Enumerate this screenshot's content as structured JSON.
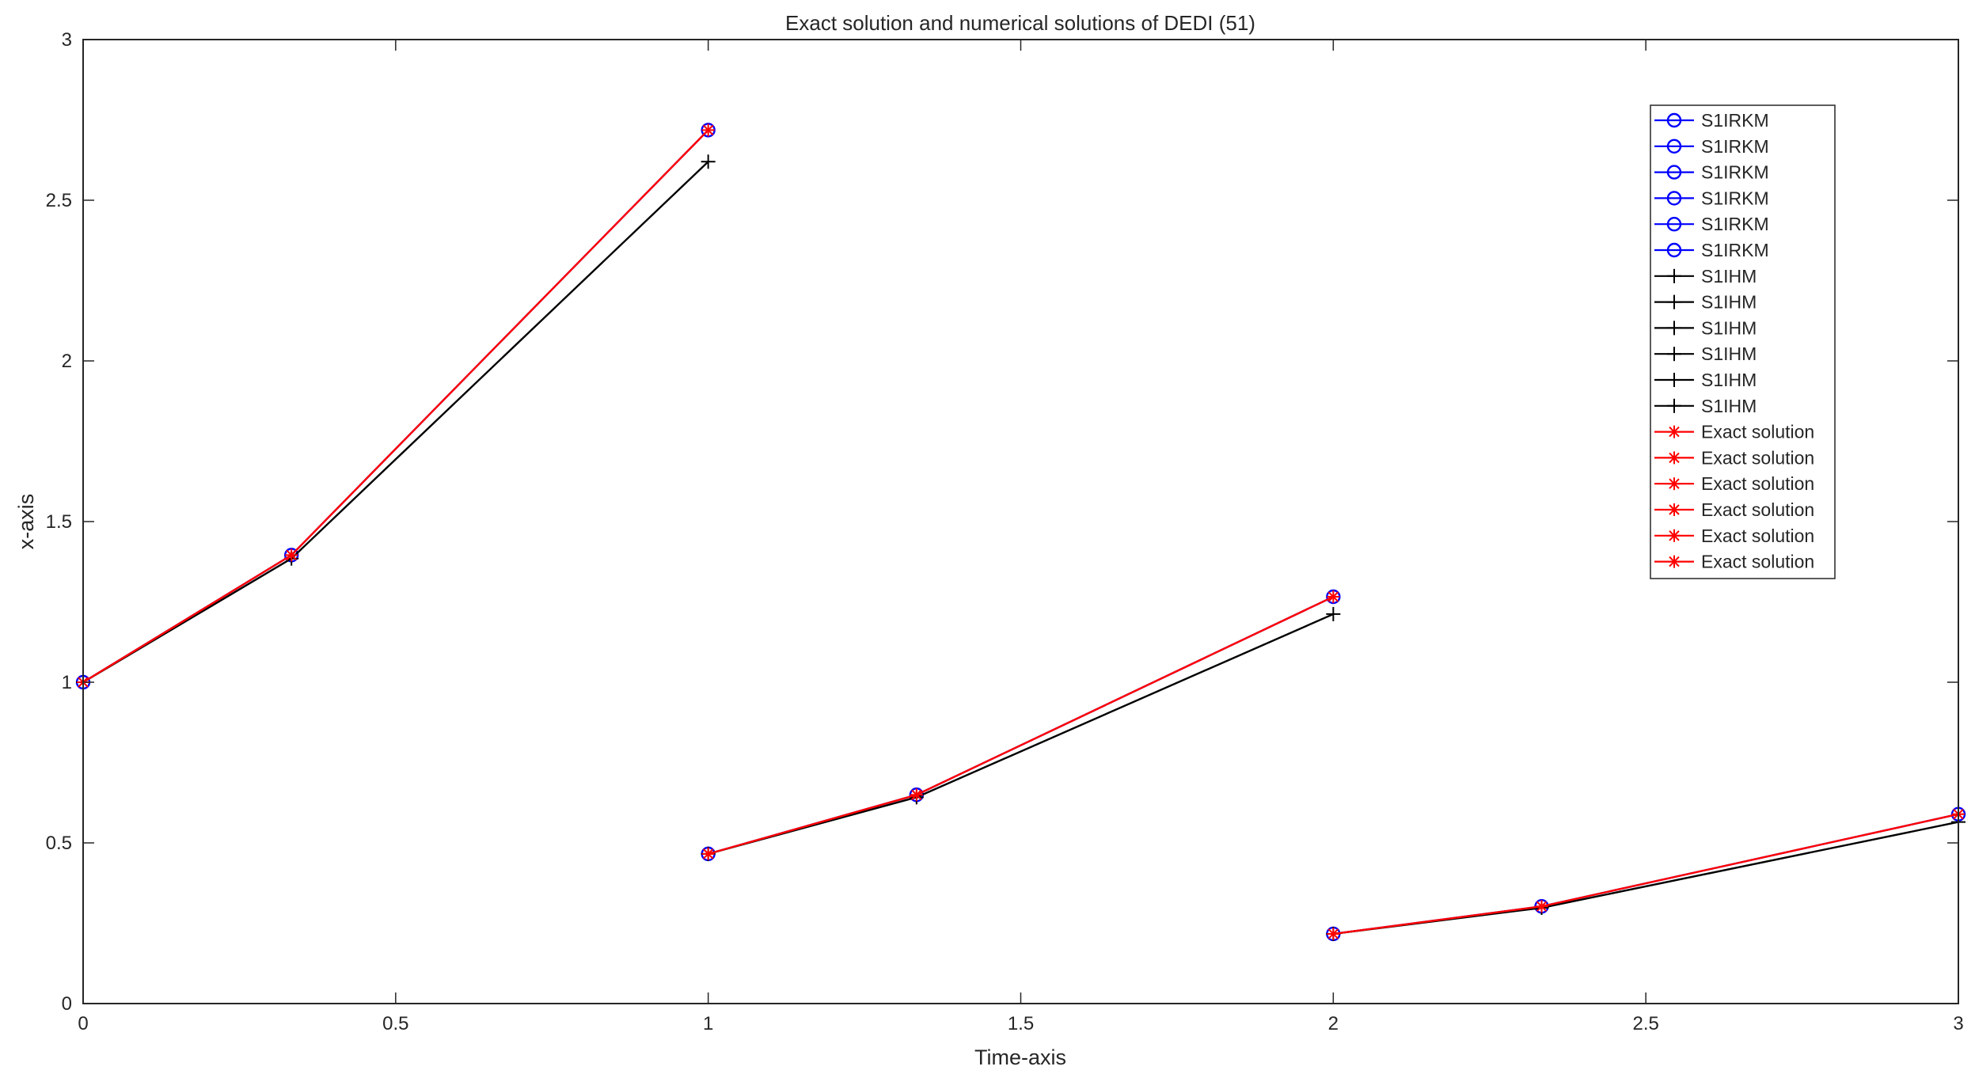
{
  "chart_data": {
    "type": "line",
    "title": "Exact solution and numerical solutions of DEDI (51)",
    "xlabel": "Time-axis",
    "ylabel": "x-axis",
    "xlim": [
      0,
      3
    ],
    "ylim": [
      0,
      3
    ],
    "xticks": [
      "0",
      "0.5",
      "1",
      "1.5",
      "2",
      "2.5",
      "3"
    ],
    "yticks": [
      "0",
      "0.5",
      "1",
      "1.5",
      "2",
      "2.5",
      "3"
    ],
    "grid": false,
    "legend_position": "top-right",
    "series": [
      {
        "name": "S1IRKM",
        "color": "#0000ff",
        "marker": "circle",
        "x": [
          0,
          0.3333,
          1
        ],
        "y": [
          1.0,
          1.3956,
          2.7183
        ]
      },
      {
        "name": "S1IRKM",
        "color": "#0000ff",
        "marker": "circle",
        "x": [
          1,
          1.3333,
          2
        ],
        "y": [
          0.4658,
          0.6496,
          1.266
        ]
      },
      {
        "name": "S1IRKM",
        "color": "#0000ff",
        "marker": "circle",
        "x": [
          2,
          2.3333,
          3
        ],
        "y": [
          0.2168,
          0.3024,
          0.5894
        ]
      },
      {
        "name": "S1IRKM",
        "color": "#0000ff",
        "marker": "circle",
        "x": [],
        "y": []
      },
      {
        "name": "S1IRKM",
        "color": "#0000ff",
        "marker": "circle",
        "x": [],
        "y": []
      },
      {
        "name": "S1IRKM",
        "color": "#0000ff",
        "marker": "circle",
        "x": [],
        "y": []
      },
      {
        "name": "S1IHM",
        "color": "#000000",
        "marker": "plus",
        "x": [
          0,
          0.3333,
          1
        ],
        "y": [
          1.0,
          1.385,
          2.62
        ]
      },
      {
        "name": "S1IHM",
        "color": "#000000",
        "marker": "plus",
        "x": [
          1,
          1.3333,
          2
        ],
        "y": [
          0.4658,
          0.642,
          1.212
        ]
      },
      {
        "name": "S1IHM",
        "color": "#000000",
        "marker": "plus",
        "x": [
          2,
          2.3333,
          3
        ],
        "y": [
          0.2168,
          0.298,
          0.565
        ]
      },
      {
        "name": "S1IHM",
        "color": "#000000",
        "marker": "plus",
        "x": [],
        "y": []
      },
      {
        "name": "S1IHM",
        "color": "#000000",
        "marker": "plus",
        "x": [],
        "y": []
      },
      {
        "name": "S1IHM",
        "color": "#000000",
        "marker": "plus",
        "x": [],
        "y": []
      },
      {
        "name": "Exact solution",
        "color": "#ff0000",
        "marker": "asterisk",
        "x": [
          0,
          0.3333,
          1
        ],
        "y": [
          1.0,
          1.3956,
          2.7183
        ]
      },
      {
        "name": "Exact solution",
        "color": "#ff0000",
        "marker": "asterisk",
        "x": [
          1,
          1.3333,
          2
        ],
        "y": [
          0.4658,
          0.6496,
          1.266
        ]
      },
      {
        "name": "Exact solution",
        "color": "#ff0000",
        "marker": "asterisk",
        "x": [
          2,
          2.3333,
          3
        ],
        "y": [
          0.2168,
          0.3024,
          0.5894
        ]
      },
      {
        "name": "Exact solution",
        "color": "#ff0000",
        "marker": "asterisk",
        "x": [],
        "y": []
      },
      {
        "name": "Exact solution",
        "color": "#ff0000",
        "marker": "asterisk",
        "x": [],
        "y": []
      },
      {
        "name": "Exact solution",
        "color": "#ff0000",
        "marker": "asterisk",
        "x": [],
        "y": []
      }
    ]
  }
}
